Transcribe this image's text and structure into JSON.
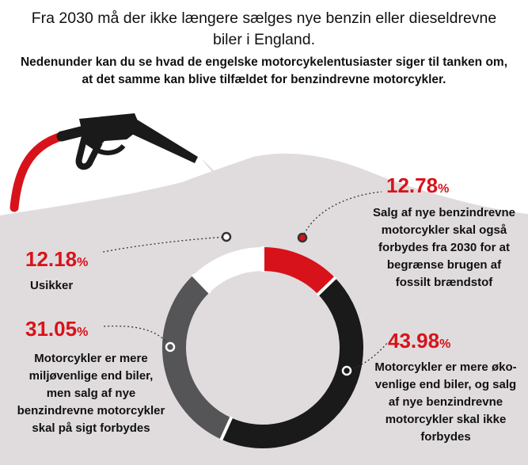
{
  "title": "Fra 2030 må der ikke længere sælges nye benzin eller dieseldrevne biler i England.",
  "subtitle": "Nedenunder kan du se hvad de engelske motorcykelentusiaster siger til tanken om, at det samme kan blive tilfældet for benzindrevne motorcykler.",
  "colors": {
    "red": "#d8121b",
    "black": "#1a1a1a",
    "gray": "#555557",
    "white": "#ffffff",
    "backdrop": "#e0dcdd"
  },
  "icons": {
    "pump": "fuel-nozzle-icon"
  },
  "chart_data": {
    "type": "pie",
    "style": "donut",
    "slices": [
      {
        "value": 12.78,
        "label": "12.78",
        "unit": "%",
        "description": "Salg af nye benzindrevne motorcykler skal også forbydes fra 2030 for at begrænse brugen af fossilt brændstof",
        "color": "#d8121b"
      },
      {
        "value": 43.98,
        "label": "43.98",
        "unit": "%",
        "description": "Motorcykler er mere øko-venlige end biler, og salg af nye benzindrevne motorcykler skal ikke forbydes",
        "color": "#1a1a1a"
      },
      {
        "value": 31.05,
        "label": "31.05",
        "unit": "%",
        "description": "Motorcykler er mere miljøvenlige end biler, men salg af nye benzindrevne motorcykler skal på sigt forbydes",
        "color": "#555557"
      },
      {
        "value": 12.18,
        "label": "12.18",
        "unit": "%",
        "description": "Usikker",
        "color": "#ffffff"
      }
    ]
  }
}
